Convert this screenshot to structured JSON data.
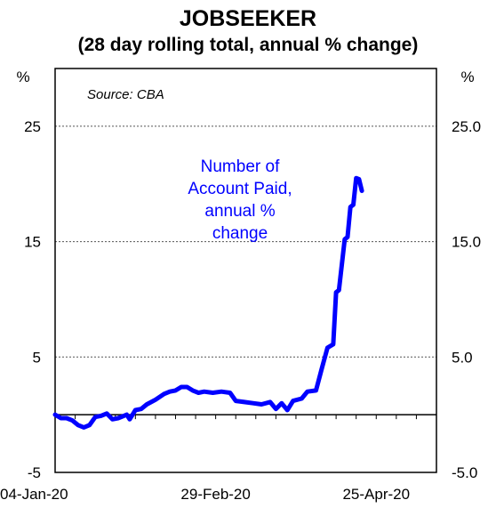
{
  "chart_data": {
    "type": "line",
    "title": "JOBSEEKER",
    "subtitle": "(28 day rolling total, annual % change)",
    "source": "Source: CBA",
    "left_axis": {
      "unit": "%",
      "ticks": [
        "25",
        "15",
        "5",
        "-5"
      ],
      "ylim": [
        -5,
        30
      ]
    },
    "right_axis": {
      "unit": "%",
      "ticks": [
        "25.0",
        "15.0",
        "5.0",
        "-5.0"
      ],
      "ylim": [
        -5,
        30
      ]
    },
    "x_tick_labels": [
      "04-Jan-20",
      "29-Feb-20",
      "25-Apr-20"
    ],
    "x_range": [
      "2020-01-04",
      "2020-05-16"
    ],
    "gridlines": [
      25,
      15,
      5
    ],
    "zero_line": true,
    "annotation_lines": [
      "Number of",
      "Account Paid,",
      "annual %",
      "change"
    ],
    "series": [
      {
        "name": "Number of Account Paid, annual % change",
        "color": "#0000ff",
        "points": [
          [
            "2020-01-04",
            0.0
          ],
          [
            "2020-01-06",
            -0.3
          ],
          [
            "2020-01-08",
            -0.3
          ],
          [
            "2020-01-10",
            -0.5
          ],
          [
            "2020-01-12",
            -0.9
          ],
          [
            "2020-01-14",
            -1.1
          ],
          [
            "2020-01-16",
            -0.9
          ],
          [
            "2020-01-18",
            -0.2
          ],
          [
            "2020-01-20",
            -0.1
          ],
          [
            "2020-01-22",
            0.1
          ],
          [
            "2020-01-24",
            -0.4
          ],
          [
            "2020-01-26",
            -0.3
          ],
          [
            "2020-01-28",
            -0.1
          ],
          [
            "2020-01-29",
            0.0
          ],
          [
            "2020-01-30",
            -0.4
          ],
          [
            "2020-02-01",
            0.4
          ],
          [
            "2020-02-03",
            0.5
          ],
          [
            "2020-02-05",
            0.9
          ],
          [
            "2020-02-08",
            1.3
          ],
          [
            "2020-02-11",
            1.8
          ],
          [
            "2020-02-13",
            2.0
          ],
          [
            "2020-02-15",
            2.1
          ],
          [
            "2020-02-17",
            2.4
          ],
          [
            "2020-02-19",
            2.4
          ],
          [
            "2020-02-21",
            2.1
          ],
          [
            "2020-02-23",
            1.9
          ],
          [
            "2020-02-25",
            2.0
          ],
          [
            "2020-02-28",
            1.9
          ],
          [
            "2020-03-02",
            2.0
          ],
          [
            "2020-03-05",
            1.9
          ],
          [
            "2020-03-07",
            1.2
          ],
          [
            "2020-03-10",
            1.1
          ],
          [
            "2020-03-13",
            1.0
          ],
          [
            "2020-03-16",
            0.9
          ],
          [
            "2020-03-19",
            1.1
          ],
          [
            "2020-03-21",
            0.5
          ],
          [
            "2020-03-23",
            1.0
          ],
          [
            "2020-03-25",
            0.4
          ],
          [
            "2020-03-27",
            1.2
          ],
          [
            "2020-03-30",
            1.4
          ],
          [
            "2020-04-01",
            2.0
          ],
          [
            "2020-04-04",
            2.1
          ],
          [
            "2020-04-06",
            4.0
          ],
          [
            "2020-04-08",
            5.8
          ],
          [
            "2020-04-10",
            6.1
          ],
          [
            "2020-04-11",
            10.6
          ],
          [
            "2020-04-12",
            10.8
          ],
          [
            "2020-04-14",
            15.2
          ],
          [
            "2020-04-15",
            15.4
          ],
          [
            "2020-04-16",
            18.0
          ],
          [
            "2020-04-17",
            18.2
          ],
          [
            "2020-04-18",
            20.5
          ],
          [
            "2020-04-19",
            20.4
          ],
          [
            "2020-04-20",
            19.4
          ]
        ]
      }
    ]
  }
}
